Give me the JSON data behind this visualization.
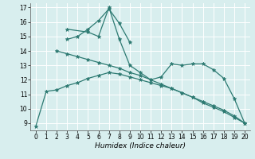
{
  "xlabel": "Humidex (Indice chaleur)",
  "xlim": [
    -0.5,
    20.5
  ],
  "ylim": [
    8.5,
    17.3
  ],
  "yticks": [
    9,
    10,
    11,
    12,
    13,
    14,
    15,
    16,
    17
  ],
  "xticks": [
    0,
    1,
    2,
    3,
    4,
    5,
    6,
    7,
    8,
    9,
    10,
    11,
    12,
    13,
    14,
    15,
    16,
    17,
    18,
    19,
    20
  ],
  "bg_color": "#d8eeee",
  "line_color": "#2d7a72",
  "grid_color": "#ffffff",
  "series": [
    {
      "x": [
        0,
        1,
        2,
        3,
        4,
        5,
        6,
        7,
        8,
        9,
        10,
        11,
        12,
        13,
        14,
        15,
        16,
        17,
        18,
        19,
        20
      ],
      "y": [
        8.8,
        11.2,
        11.3,
        11.6,
        11.8,
        12.1,
        12.3,
        12.5,
        12.4,
        12.2,
        12.0,
        11.8,
        11.6,
        11.4,
        11.1,
        10.8,
        10.5,
        10.2,
        9.9,
        9.5,
        9.0
      ]
    },
    {
      "x": [
        2,
        3,
        4,
        5,
        6,
        7,
        8,
        9,
        10,
        11,
        12,
        13,
        14,
        15,
        16,
        17,
        18,
        19,
        20
      ],
      "y": [
        14.0,
        13.8,
        13.6,
        13.4,
        13.2,
        13.0,
        12.8,
        12.5,
        12.3,
        12.0,
        11.7,
        11.4,
        11.1,
        10.8,
        10.4,
        10.1,
        9.8,
        9.4,
        9.0
      ]
    },
    {
      "x": [
        3,
        4,
        5,
        6,
        7,
        8,
        9
      ],
      "y": [
        14.8,
        15.0,
        15.5,
        16.1,
        16.9,
        15.9,
        14.6
      ]
    },
    {
      "x": [
        3,
        5,
        6,
        7,
        8,
        9,
        10,
        11,
        12,
        13,
        14,
        15,
        16,
        17,
        18,
        19,
        20
      ],
      "y": [
        15.5,
        15.3,
        15.0,
        17.0,
        14.8,
        13.0,
        12.5,
        12.0,
        12.2,
        13.1,
        13.0,
        13.1,
        13.1,
        12.7,
        12.1,
        10.7,
        9.0
      ]
    }
  ]
}
